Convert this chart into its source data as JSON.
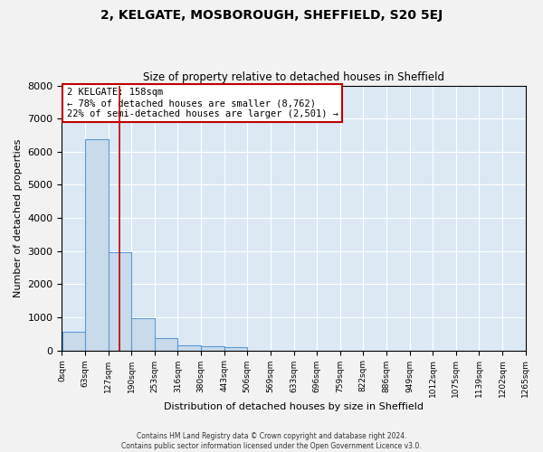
{
  "title1": "2, KELGATE, MOSBOROUGH, SHEFFIELD, S20 5EJ",
  "title2": "Size of property relative to detached houses in Sheffield",
  "xlabel": "Distribution of detached houses by size in Sheffield",
  "ylabel": "Number of detached properties",
  "annotation_line1": "2 KELGATE: 158sqm",
  "annotation_line2": "← 78% of detached houses are smaller (8,762)",
  "annotation_line3": "22% of semi-detached houses are larger (2,501) →",
  "property_size_sqm": 158,
  "bin_edges": [
    0,
    63,
    127,
    190,
    253,
    316,
    380,
    443,
    506,
    569,
    633,
    696,
    759,
    822,
    886,
    949,
    1012,
    1075,
    1139,
    1202,
    1265
  ],
  "bar_values": [
    570,
    6380,
    2960,
    960,
    360,
    150,
    120,
    90,
    0,
    0,
    0,
    0,
    0,
    0,
    0,
    0,
    0,
    0,
    0,
    0
  ],
  "bar_color": "#c9daea",
  "bar_edge_color": "#5b9bd5",
  "vline_color": "#c00000",
  "vline_x": 158,
  "ylim": [
    0,
    8000
  ],
  "yticks": [
    0,
    1000,
    2000,
    3000,
    4000,
    5000,
    6000,
    7000,
    8000
  ],
  "background_color": "#dce9f5",
  "grid_color": "#ffffff",
  "fig_background": "#f2f2f2",
  "annotation_box_color": "#ffffff",
  "annotation_box_edge": "#c00000",
  "footer_line1": "Contains HM Land Registry data © Crown copyright and database right 2024.",
  "footer_line2": "Contains public sector information licensed under the Open Government Licence v3.0."
}
